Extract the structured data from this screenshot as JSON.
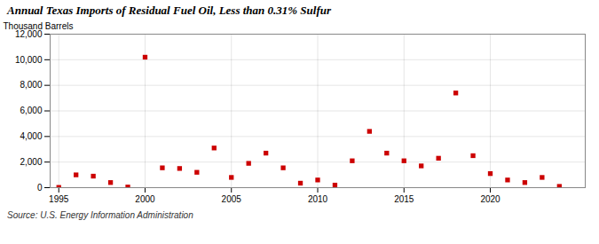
{
  "chart_data": {
    "type": "scatter",
    "title": "Annual Texas Imports of Residual Fuel Oil, Less than 0.31% Sulfur",
    "ylabel": "Thousand Barrels",
    "source": "Source: U.S. Energy Information Administration",
    "color": "#cc0000",
    "marker": "square",
    "grid": true,
    "x": [
      1995,
      1996,
      1997,
      1998,
      1999,
      2000,
      2001,
      2002,
      2003,
      2004,
      2005,
      2006,
      2007,
      2008,
      2009,
      2010,
      2011,
      2012,
      2013,
      2014,
      2015,
      2016,
      2017,
      2018,
      2019,
      2020,
      2021,
      2022,
      2023,
      2024
    ],
    "values": [
      20,
      1000,
      900,
      400,
      50,
      10200,
      1550,
      1500,
      1200,
      3100,
      800,
      1900,
      2700,
      1550,
      350,
      600,
      200,
      2100,
      4400,
      2700,
      2100,
      1700,
      2300,
      7400,
      2500,
      1100,
      600,
      400,
      800,
      100
    ],
    "xlim": [
      1994.5,
      2025.5
    ],
    "xticks": [
      1995,
      2000,
      2005,
      2010,
      2015,
      2020
    ],
    "ylim": [
      0,
      12000
    ],
    "yticks": [
      0,
      {
        "value": 2000,
        "label": "2,000"
      },
      {
        "value": 4000,
        "label": "4,000"
      },
      {
        "value": 6000,
        "label": "6,000"
      },
      {
        "value": 8000,
        "label": "8,000"
      },
      {
        "value": 10000,
        "label": "10,000"
      },
      {
        "value": 12000,
        "label": "12,000"
      }
    ]
  }
}
